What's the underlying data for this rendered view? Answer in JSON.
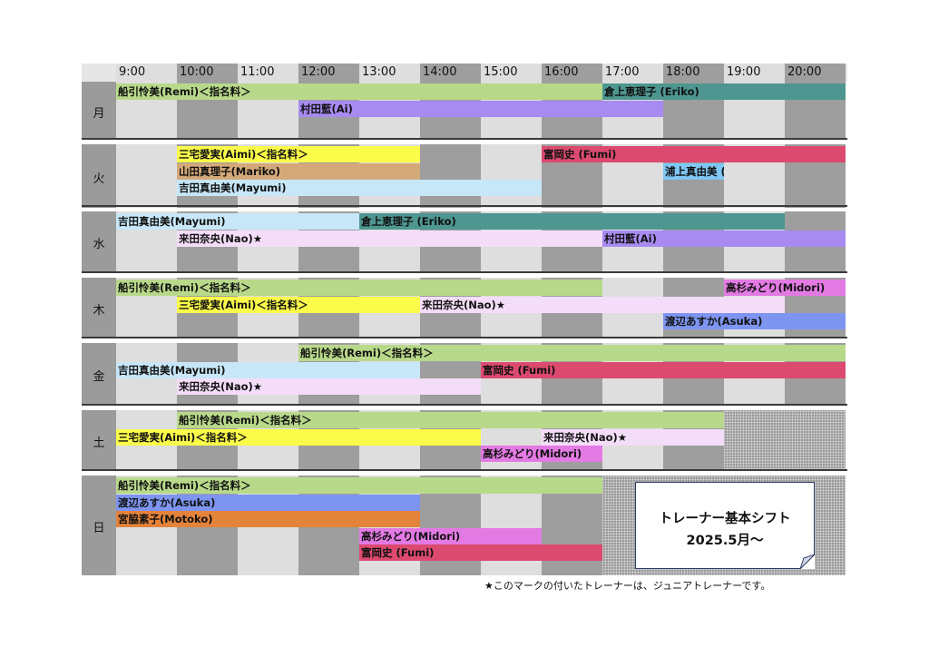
{
  "times": [
    "9:00",
    "10:00",
    "11:00",
    "12:00",
    "13:00",
    "14:00",
    "15:00",
    "16:00",
    "17:00",
    "18:00",
    "19:00",
    "20:00"
  ],
  "days": [
    {
      "label": "月",
      "shifts": [
        {
          "name": "船引怜美(Remi)＜指名料＞",
          "start": 9,
          "end": 17,
          "color": "#b8d98a"
        },
        {
          "name": "村田藍(Ai)",
          "start": 12,
          "end": 18,
          "color": "#a78bf0"
        },
        {
          "name": "倉上恵理子 (Eriko)",
          "start": 17,
          "end": 21,
          "color": "#4e9690"
        }
      ]
    },
    {
      "label": "火",
      "shifts": [
        {
          "name": "三宅愛実(Aimi)＜指名料＞",
          "start": 10,
          "end": 14,
          "color": "#fbfb4a"
        },
        {
          "name": "富岡史 (Fumi)",
          "start": 16,
          "end": 21,
          "color": "#dc4a6f"
        },
        {
          "name": "山田真理子(Mariko)",
          "start": 10,
          "end": 14,
          "color": "#d4a97a"
        },
        {
          "name": "吉田真由美(Mayumi)",
          "start": 10,
          "end": 16,
          "color": "#c7e7f8"
        },
        {
          "name": "浦上真由美 (Mayu)",
          "start": 18,
          "end": 19,
          "color": "#7fc7f4"
        }
      ]
    },
    {
      "label": "水",
      "shifts": [
        {
          "name": "吉田真由美(Mayumi)",
          "start": 9,
          "end": 13,
          "color": "#c7e7f8"
        },
        {
          "name": "倉上恵理子 (Eriko)",
          "start": 13,
          "end": 20,
          "color": "#4e9690"
        },
        {
          "name": "村田藍(Ai)",
          "start": 17,
          "end": 21,
          "color": "#a78bf0"
        },
        {
          "name": "来田奈央(Nao)★",
          "start": 10,
          "end": 17,
          "color": "#f4ddf8"
        }
      ]
    },
    {
      "label": "木",
      "shifts": [
        {
          "name": "船引怜美(Remi)＜指名料＞",
          "start": 9,
          "end": 17,
          "color": "#b8d98a"
        },
        {
          "name": "高杉みどり(Midori)",
          "start": 19,
          "end": 21,
          "color": "#e37ae4"
        },
        {
          "name": "三宅愛実(Aimi)＜指名料＞",
          "start": 10,
          "end": 14,
          "color": "#fbfb4a"
        },
        {
          "name": "来田奈央(Nao)★",
          "start": 14,
          "end": 20,
          "color": "#f4ddf8"
        },
        {
          "name": "渡辺あすか(Asuka)",
          "start": 18,
          "end": 21,
          "color": "#7d95f0"
        }
      ]
    },
    {
      "label": "金",
      "shifts": [
        {
          "name": "船引怜美(Remi)＜指名料＞",
          "start": 12,
          "end": 21,
          "color": "#b8d98a"
        },
        {
          "name": "吉田真由美(Mayumi)",
          "start": 9,
          "end": 14,
          "color": "#c7e7f8"
        },
        {
          "name": "富岡史 (Fumi)",
          "start": 15,
          "end": 21,
          "color": "#dc4a6f"
        },
        {
          "name": "来田奈央(Nao)★",
          "start": 10,
          "end": 15,
          "color": "#f4ddf8"
        }
      ]
    },
    {
      "label": "土",
      "shifts": [
        {
          "name": "船引怜美(Remi)＜指名料＞",
          "start": 10,
          "end": 19,
          "color": "#b8d98a"
        },
        {
          "name": "三宅愛実(Aimi)＜指名料＞",
          "start": 9,
          "end": 15,
          "color": "#fbfb4a"
        },
        {
          "name": "来田奈央(Nao)★",
          "start": 16,
          "end": 19,
          "color": "#f4ddf8"
        },
        {
          "name": "高杉みどり(Midori)",
          "start": 15,
          "end": 17,
          "color": "#e37ae4"
        }
      ]
    },
    {
      "label": "日",
      "shifts": [
        {
          "name": "船引怜美(Remi)＜指名料＞",
          "start": 9,
          "end": 17,
          "color": "#b8d98a"
        },
        {
          "name": "渡辺あすか(Asuka)",
          "start": 9,
          "end": 14,
          "color": "#7d95f0"
        },
        {
          "name": "宮脇素子(Motoko)",
          "start": 9,
          "end": 14,
          "color": "#e4833a"
        },
        {
          "name": "高杉みどり(Midori)",
          "start": 13,
          "end": 16,
          "color": "#e37ae4"
        },
        {
          "name": "富岡史 (Fumi)",
          "start": 13,
          "end": 17,
          "color": "#dc4a6f"
        }
      ]
    }
  ],
  "title": {
    "line1": "トレーナー基本シフト",
    "line2": "2025.5月～"
  },
  "footnote": "★このマークの付いたトレーナーは、ジュニアトレーナーです。"
}
